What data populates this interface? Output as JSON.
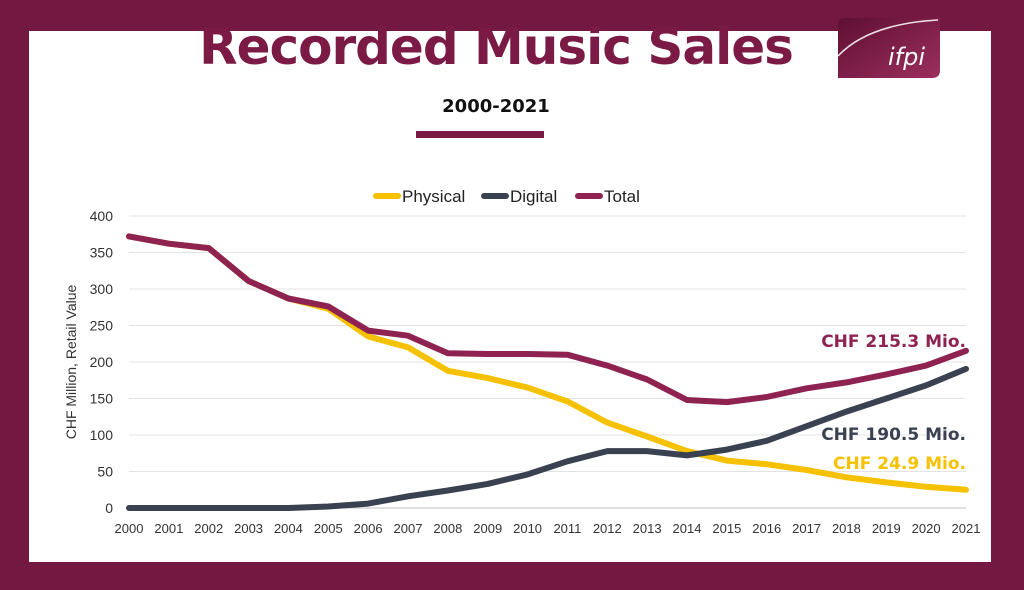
{
  "title": "Recorded Music Sales",
  "subtitle": "2000-2021",
  "logo_text": "ifpi",
  "colors": {
    "frame": "#731841",
    "physical": "#f5c100",
    "digital": "#3a4150",
    "total": "#8e2351"
  },
  "chart_data": {
    "type": "line",
    "ylabel": "CHF Million, Retail Value",
    "xlabel": "",
    "ylim": [
      0,
      400
    ],
    "yticks": [
      0,
      50,
      100,
      150,
      200,
      250,
      300,
      350,
      400
    ],
    "grid": true,
    "legend_position": "top-center",
    "x": [
      "2000",
      "2001",
      "2002",
      "2003",
      "2004",
      "2005",
      "2006",
      "2007",
      "2008",
      "2009",
      "2010",
      "2011",
      "2012",
      "2013",
      "2014",
      "2015",
      "2016",
      "2017",
      "2018",
      "2019",
      "2020",
      "2021"
    ],
    "series": [
      {
        "name": "Physical",
        "color_key": "physical",
        "values": [
          372,
          362,
          356,
          311,
          287,
          273,
          235,
          220,
          188,
          178,
          165,
          146,
          117,
          98,
          78,
          65,
          60,
          52,
          42,
          35,
          29,
          24.9
        ]
      },
      {
        "name": "Digital",
        "color_key": "digital",
        "values": [
          0,
          0,
          0,
          0,
          0,
          2,
          6,
          16,
          24,
          33,
          46,
          64,
          78,
          78,
          72,
          80,
          92,
          112,
          132,
          150,
          168,
          190.5
        ]
      },
      {
        "name": "Total",
        "color_key": "total",
        "values": [
          372,
          362,
          356,
          311,
          287,
          276,
          243,
          236,
          212,
          211,
          211,
          210,
          195,
          176,
          148,
          145,
          152,
          164,
          172,
          183,
          195,
          215.3
        ]
      }
    ],
    "annotations": [
      {
        "text": "CHF 215.3 Mio.",
        "series": "Total"
      },
      {
        "text": "CHF 190.5 Mio.",
        "series": "Digital"
      },
      {
        "text": "CHF 24.9 Mio.",
        "series": "Physical"
      }
    ]
  }
}
